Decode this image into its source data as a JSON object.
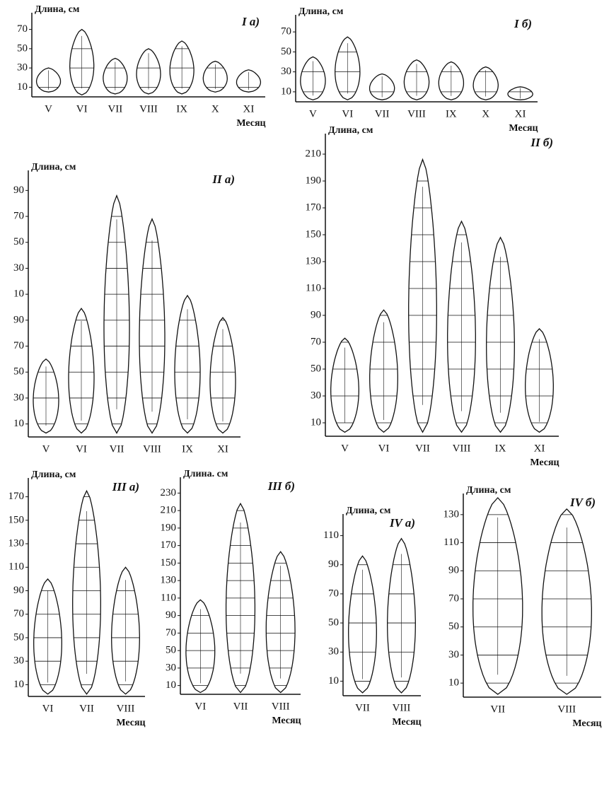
{
  "chart_data": [
    {
      "type": "spindle",
      "title": "I а)",
      "y_label": "Длина, см",
      "x_label": "Месяц",
      "categories": [
        "V",
        "VI",
        "VII",
        "VIII",
        "IX",
        "X",
        "XI"
      ],
      "low": [
        5,
        2,
        3,
        3,
        3,
        5,
        5
      ],
      "high": [
        30,
        70,
        40,
        50,
        58,
        37,
        28
      ],
      "ylim": [
        0,
        80
      ],
      "yticks": [
        10,
        30,
        50,
        70
      ]
    },
    {
      "type": "spindle",
      "title": "I б)",
      "y_label": "Длина, см",
      "x_label": "Месяц",
      "categories": [
        "V",
        "VI",
        "VII",
        "VIII",
        "IX",
        "X",
        "XI"
      ],
      "low": [
        2,
        2,
        2,
        2,
        2,
        2,
        2
      ],
      "high": [
        45,
        65,
        28,
        42,
        40,
        35,
        15
      ],
      "ylim": [
        0,
        80
      ],
      "yticks": [
        10,
        30,
        50,
        70
      ]
    },
    {
      "type": "spindle",
      "title": "II а)",
      "y_label": "Длина, см",
      "categories": [
        "V",
        "VI",
        "VII",
        "VIII",
        "IX",
        "XI"
      ],
      "low": [
        3,
        3,
        3,
        3,
        3,
        3
      ],
      "high": [
        60,
        99,
        186,
        168,
        109,
        92
      ],
      "ylim": [
        0,
        200
      ],
      "yticks": [
        10,
        30,
        50,
        70,
        90,
        {
          "value": 110,
          "label": "10"
        },
        {
          "value": 130,
          "label": "30"
        },
        {
          "value": 150,
          "label": "50"
        },
        {
          "value": 170,
          "label": "70"
        },
        {
          "value": 190,
          "label": "90"
        }
      ]
    },
    {
      "type": "spindle",
      "title": "II б)",
      "y_label": "Длина, см",
      "x_label": "Месяц",
      "categories": [
        "V",
        "VI",
        "VII",
        "VIII",
        "IX",
        "XI"
      ],
      "low": [
        3,
        3,
        3,
        3,
        3,
        3
      ],
      "high": [
        73,
        94,
        206,
        160,
        148,
        80
      ],
      "ylim": [
        0,
        220
      ],
      "yticks": [
        10,
        30,
        50,
        70,
        90,
        110,
        130,
        150,
        170,
        190,
        210
      ]
    },
    {
      "type": "spindle",
      "title": "III а)",
      "y_label": "Длина, см",
      "x_label": "Месяц",
      "categories": [
        "VI",
        "VII",
        "VIII"
      ],
      "low": [
        2,
        2,
        2
      ],
      "high": [
        100,
        175,
        110
      ],
      "ylim": [
        0,
        180
      ],
      "yticks": [
        10,
        30,
        50,
        70,
        90,
        110,
        130,
        150,
        170
      ]
    },
    {
      "type": "spindle",
      "title": "III б)",
      "y_label": "Длина. см",
      "x_label": "Месяц",
      "categories": [
        "VI",
        "VII",
        "VIII"
      ],
      "low": [
        2,
        2,
        2
      ],
      "high": [
        108,
        218,
        163
      ],
      "ylim": [
        0,
        240
      ],
      "yticks": [
        10,
        30,
        50,
        70,
        90,
        110,
        130,
        150,
        170,
        190,
        210,
        230
      ]
    },
    {
      "type": "spindle",
      "title": "IV а)",
      "y_label": "Длина, см",
      "x_label": "Месяц",
      "categories": [
        "VII",
        "VIII"
      ],
      "low": [
        2,
        2
      ],
      "high": [
        96,
        108
      ],
      "ylim": [
        0,
        120
      ],
      "yticks": [
        10,
        30,
        50,
        70,
        90,
        110
      ]
    },
    {
      "type": "spindle",
      "title": "IV б)",
      "y_label": "Длина, см",
      "x_label": "Месяц",
      "categories": [
        "VII",
        "VIII"
      ],
      "low": [
        2,
        2
      ],
      "high": [
        142,
        134
      ],
      "ylim": [
        0,
        140
      ],
      "yticks": [
        10,
        30,
        50,
        70,
        90,
        110,
        130
      ]
    }
  ]
}
